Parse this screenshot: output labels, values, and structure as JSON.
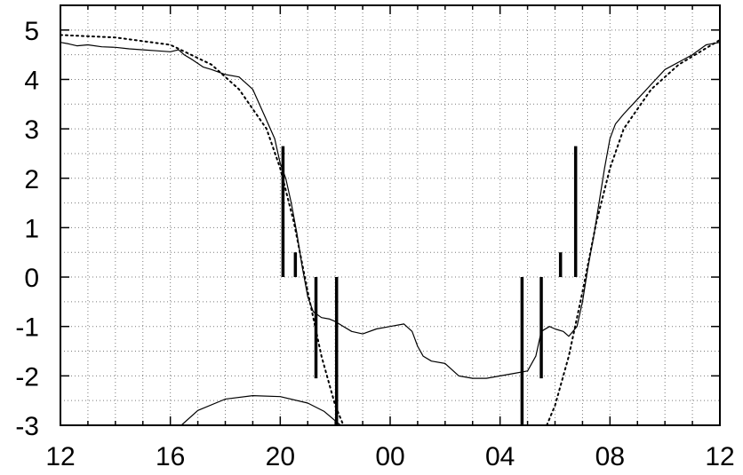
{
  "chart_data": {
    "type": "line",
    "title": "",
    "xlabel": "",
    "ylabel": "",
    "x_unit": "hour of day (12:00 to 12:00 next day)",
    "xlim": [
      12,
      36
    ],
    "ylim": [
      -3,
      5.5
    ],
    "grid": true,
    "x_tick_values": [
      12,
      16,
      20,
      24,
      28,
      32,
      36
    ],
    "x_tick_labels": [
      "12",
      "16",
      "20",
      "00",
      "04",
      "08",
      "12"
    ],
    "y_tick_values": [
      -3,
      -2,
      -1,
      0,
      1,
      2,
      3,
      4,
      5
    ],
    "y_tick_labels": [
      "-3",
      "-2",
      "-1",
      "0",
      "1",
      "2",
      "3",
      "4",
      "5"
    ],
    "series": [
      {
        "style": "solid-thin",
        "color": "#000000",
        "points": [
          [
            12.0,
            4.75
          ],
          [
            12.3,
            4.72
          ],
          [
            12.6,
            4.68
          ],
          [
            13.0,
            4.7
          ],
          [
            13.5,
            4.66
          ],
          [
            14.0,
            4.65
          ],
          [
            14.5,
            4.62
          ],
          [
            15.0,
            4.6
          ],
          [
            15.5,
            4.58
          ],
          [
            16.0,
            4.56
          ],
          [
            16.3,
            4.6
          ],
          [
            16.5,
            4.5
          ],
          [
            16.8,
            4.4
          ],
          [
            17.2,
            4.25
          ],
          [
            17.5,
            4.2
          ],
          [
            18.0,
            4.1
          ],
          [
            18.5,
            4.05
          ],
          [
            19.0,
            3.8
          ],
          [
            19.4,
            3.3
          ],
          [
            19.8,
            2.8
          ],
          [
            20.0,
            2.3
          ],
          [
            20.2,
            2.0
          ],
          [
            20.4,
            1.5
          ],
          [
            20.6,
            0.9
          ],
          [
            20.8,
            0.2
          ],
          [
            21.0,
            -0.4
          ],
          [
            21.2,
            -0.7
          ],
          [
            21.5,
            -0.82
          ],
          [
            21.8,
            -0.85
          ],
          [
            22.0,
            -0.9
          ],
          [
            22.3,
            -1.0
          ],
          [
            22.6,
            -1.1
          ],
          [
            23.0,
            -1.15
          ],
          [
            23.5,
            -1.05
          ],
          [
            24.0,
            -1.0
          ],
          [
            24.5,
            -0.95
          ],
          [
            24.8,
            -1.1
          ],
          [
            25.0,
            -1.4
          ],
          [
            25.2,
            -1.6
          ],
          [
            25.5,
            -1.7
          ],
          [
            26.0,
            -1.75
          ],
          [
            26.5,
            -2.0
          ],
          [
            27.0,
            -2.05
          ],
          [
            27.5,
            -2.05
          ],
          [
            28.0,
            -2.0
          ],
          [
            28.5,
            -1.95
          ],
          [
            29.0,
            -1.9
          ],
          [
            29.3,
            -1.6
          ],
          [
            29.5,
            -1.1
          ],
          [
            29.8,
            -1.0
          ],
          [
            30.0,
            -1.05
          ],
          [
            30.3,
            -1.1
          ],
          [
            30.5,
            -1.2
          ],
          [
            30.8,
            -1.0
          ],
          [
            31.0,
            -0.5
          ],
          [
            31.2,
            0.2
          ],
          [
            31.4,
            0.8
          ],
          [
            31.6,
            1.5
          ],
          [
            31.8,
            2.2
          ],
          [
            32.0,
            2.8
          ],
          [
            32.2,
            3.1
          ],
          [
            32.5,
            3.3
          ],
          [
            33.0,
            3.6
          ],
          [
            33.5,
            3.9
          ],
          [
            34.0,
            4.2
          ],
          [
            34.5,
            4.35
          ],
          [
            35.0,
            4.5
          ],
          [
            35.5,
            4.7
          ],
          [
            36.0,
            4.75
          ]
        ]
      },
      {
        "style": "dotted",
        "color": "#000000",
        "points": [
          [
            12.0,
            4.9
          ],
          [
            14.0,
            4.85
          ],
          [
            16.0,
            4.7
          ],
          [
            17.5,
            4.3
          ],
          [
            18.5,
            3.8
          ],
          [
            19.5,
            3.0
          ],
          [
            20.0,
            2.2
          ],
          [
            20.5,
            1.1
          ],
          [
            21.0,
            -0.3
          ],
          [
            21.5,
            -1.6
          ],
          [
            22.0,
            -2.6
          ],
          [
            22.3,
            -3.0
          ],
          [
            29.7,
            -3.0
          ],
          [
            30.0,
            -2.6
          ],
          [
            30.5,
            -1.6
          ],
          [
            31.0,
            -0.3
          ],
          [
            31.5,
            1.1
          ],
          [
            32.0,
            2.2
          ],
          [
            32.5,
            3.0
          ],
          [
            33.5,
            3.8
          ],
          [
            34.5,
            4.3
          ],
          [
            36.0,
            4.8
          ]
        ]
      },
      {
        "style": "arc",
        "color": "#000000",
        "points": [
          [
            16.4,
            -3.0
          ],
          [
            17.0,
            -2.7
          ],
          [
            18.0,
            -2.47
          ],
          [
            19.0,
            -2.4
          ],
          [
            20.0,
            -2.42
          ],
          [
            21.0,
            -2.55
          ],
          [
            21.6,
            -2.72
          ],
          [
            22.2,
            -3.0
          ]
        ]
      }
    ],
    "markers": [
      {
        "x": 20.1,
        "y0": 0,
        "y1": 2.65
      },
      {
        "x": 20.55,
        "y0": 0,
        "y1": 0.5
      },
      {
        "x": 21.3,
        "y0": -2.05,
        "y1": 0
      },
      {
        "x": 22.05,
        "y0": -3.0,
        "y1": 0
      },
      {
        "x": 28.8,
        "y0": -3.0,
        "y1": 0
      },
      {
        "x": 29.5,
        "y0": -2.05,
        "y1": 0
      },
      {
        "x": 30.2,
        "y0": 0,
        "y1": 0.5
      },
      {
        "x": 30.75,
        "y0": 0,
        "y1": 2.65
      }
    ]
  }
}
